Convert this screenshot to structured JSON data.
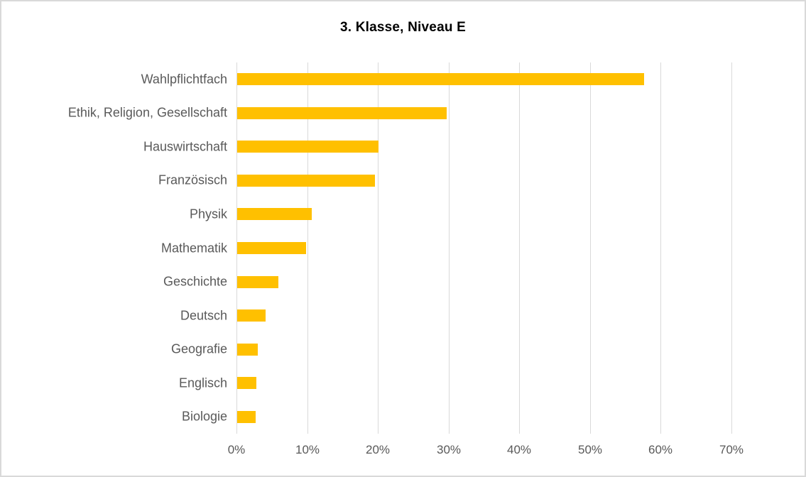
{
  "chart_data": {
    "type": "bar",
    "orientation": "horizontal",
    "title": "3. Klasse, Niveau E",
    "categories": [
      "Wahlpflichtfach",
      "Ethik, Religion, Gesellschaft",
      "Hauswirtschaft",
      "Französisch",
      "Physik",
      "Mathematik",
      "Geschichte",
      "Deutsch",
      "Geografie",
      "Englisch",
      "Biologie"
    ],
    "values": [
      57.5,
      29.6,
      20.0,
      19.5,
      10.5,
      9.7,
      5.8,
      4.0,
      2.9,
      2.7,
      2.6
    ],
    "value_unit": "%",
    "xlim": [
      0,
      70
    ],
    "x_tick_values": [
      0,
      10,
      20,
      30,
      40,
      50,
      60,
      70
    ],
    "x_tick_labels": [
      "0%",
      "10%",
      "20%",
      "30%",
      "40%",
      "50%",
      "60%",
      "70%"
    ],
    "grid": true,
    "legend": "none"
  },
  "colors": {
    "bar": "#FFC000",
    "gridline": "#D9D9D9",
    "axis_label": "#595959",
    "title": "#000000",
    "frame_border": "#D9D9D9",
    "background": "#FFFFFF"
  }
}
